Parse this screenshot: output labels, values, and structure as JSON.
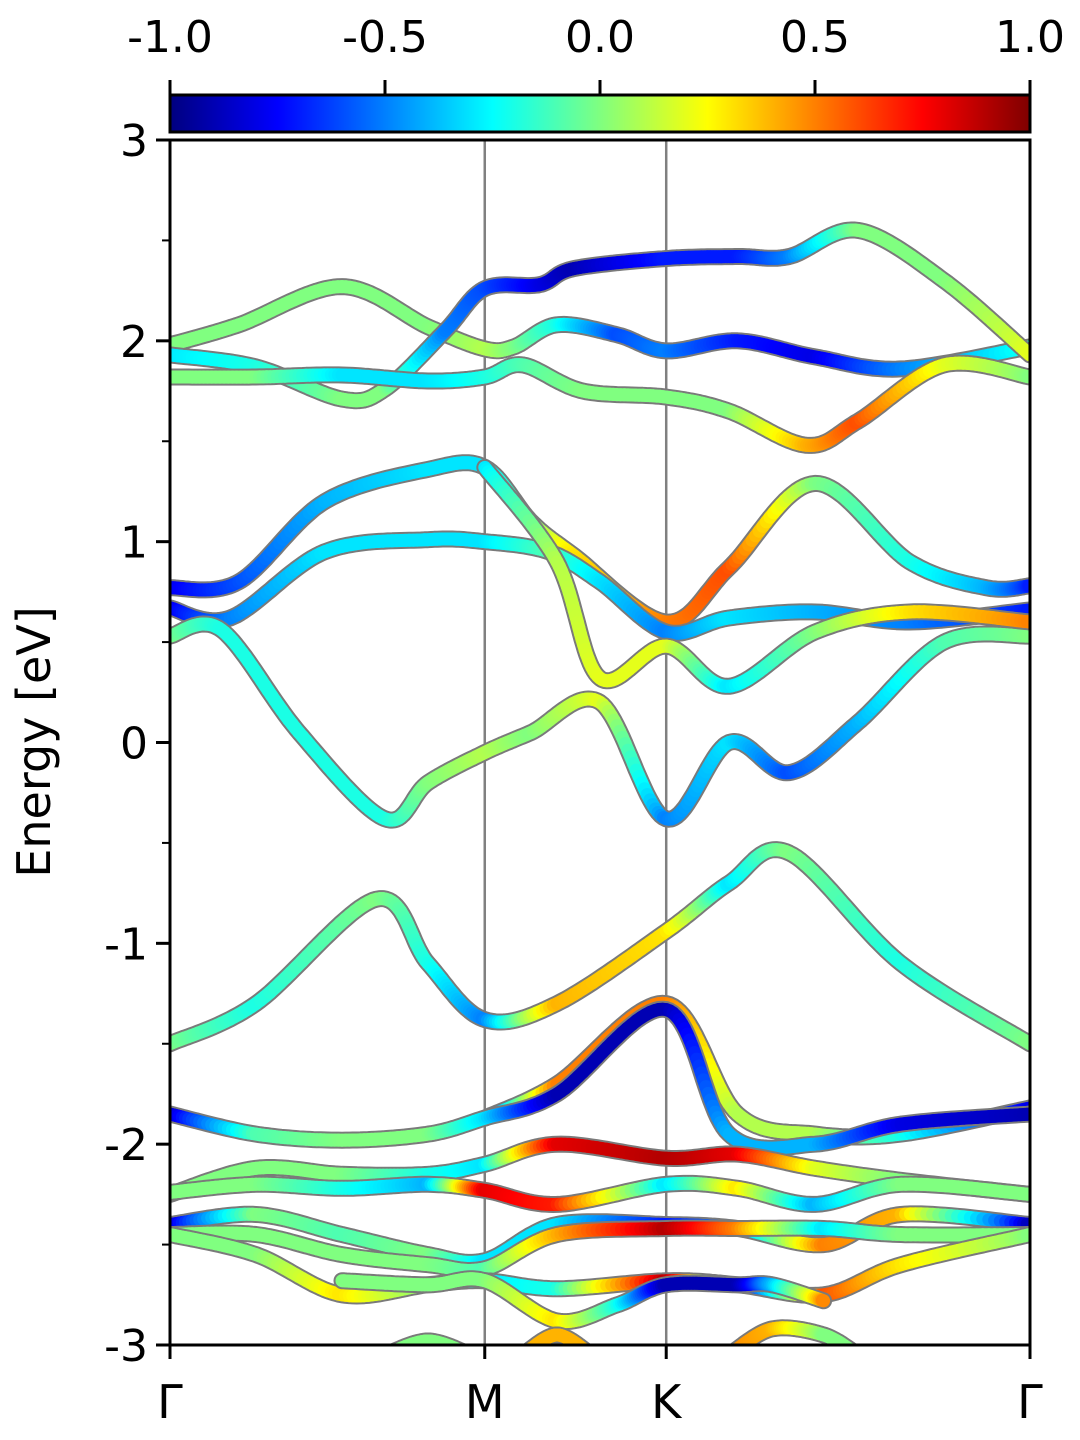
{
  "chart_data": {
    "type": "line",
    "ylabel": "Energy [eV]",
    "ylim": [
      -3,
      3
    ],
    "y_ticks": [
      "-3",
      "-2",
      "-1",
      "0",
      "1",
      "2",
      "3"
    ],
    "y_tick_values": [
      -3,
      -2,
      -1,
      0,
      1,
      2,
      3
    ],
    "k_points": [
      {
        "label": "Γ",
        "x": 0
      },
      {
        "label": "M",
        "x": 0.366
      },
      {
        "label": "K",
        "x": 0.577
      },
      {
        "label": "Γ",
        "x": 1.0
      }
    ],
    "colorbar": {
      "min": -1.0,
      "max": 1.0,
      "ticks": [
        "-1.0",
        "-0.5",
        "0.0",
        "0.5",
        "1.0"
      ],
      "tick_values": [
        -1.0,
        -0.5,
        0.0,
        0.5,
        1.0
      ],
      "colormap": "jet"
    },
    "grid": false,
    "bands": [
      {
        "points": [
          [
            0,
            1.98
          ],
          [
            0.08,
            2.08
          ],
          [
            0.2,
            2.27
          ],
          [
            0.3,
            2.07
          ],
          [
            0.366,
            1.96
          ],
          [
            0.4,
            1.97
          ],
          [
            0.45,
            2.08
          ],
          [
            0.52,
            2.03
          ],
          [
            0.577,
            1.95
          ],
          [
            0.66,
            2.0
          ],
          [
            0.75,
            1.92
          ],
          [
            0.85,
            1.86
          ],
          [
            1.0,
            1.97
          ]
        ],
        "weights": [
          0,
          0,
          0,
          0,
          0.1,
          0,
          -0.2,
          -0.6,
          -0.5,
          -0.7,
          -0.8,
          -0.5,
          -0.2
        ]
      },
      {
        "points": [
          [
            0,
            1.93
          ],
          [
            0.1,
            1.87
          ],
          [
            0.2,
            1.71
          ],
          [
            0.25,
            1.76
          ],
          [
            0.32,
            2.05
          ],
          [
            0.366,
            2.26
          ],
          [
            0.43,
            2.28
          ],
          [
            0.47,
            2.36
          ],
          [
            0.577,
            2.41
          ],
          [
            0.66,
            2.42
          ],
          [
            0.72,
            2.42
          ],
          [
            0.8,
            2.55
          ],
          [
            0.9,
            2.3
          ],
          [
            1.0,
            1.93
          ]
        ],
        "weights": [
          -0.3,
          -0.2,
          0,
          0,
          -0.5,
          -0.6,
          -0.8,
          -0.9,
          -0.7,
          -0.7,
          -0.5,
          0,
          0,
          0.2
        ]
      },
      {
        "points": [
          [
            0,
            1.82
          ],
          [
            0.1,
            1.82
          ],
          [
            0.2,
            1.83
          ],
          [
            0.3,
            1.8
          ],
          [
            0.366,
            1.82
          ],
          [
            0.41,
            1.88
          ],
          [
            0.48,
            1.75
          ],
          [
            0.577,
            1.72
          ],
          [
            0.65,
            1.65
          ],
          [
            0.74,
            1.48
          ],
          [
            0.8,
            1.6
          ],
          [
            0.9,
            1.88
          ],
          [
            1.0,
            1.82
          ]
        ],
        "weights": [
          0,
          0,
          -0.3,
          -0.3,
          -0.2,
          -0.1,
          0,
          0,
          0,
          0.4,
          0.6,
          0.2,
          0
        ]
      },
      {
        "points": [
          [
            0,
            0.77
          ],
          [
            0.08,
            0.8
          ],
          [
            0.18,
            1.2
          ],
          [
            0.3,
            1.36
          ],
          [
            0.366,
            1.37
          ],
          [
            0.42,
            1.1
          ],
          [
            0.47,
            0.93
          ],
          [
            0.577,
            0.6
          ],
          [
            0.65,
            0.87
          ],
          [
            0.75,
            1.29
          ],
          [
            0.86,
            0.9
          ],
          [
            0.95,
            0.77
          ],
          [
            1.0,
            0.78
          ]
        ],
        "weights": [
          -0.8,
          -0.6,
          -0.4,
          -0.3,
          -0.3,
          0,
          0.3,
          0.5,
          0.6,
          0,
          -0.2,
          -0.4,
          -0.7
        ]
      },
      {
        "points": [
          [
            0,
            0.67
          ],
          [
            0.07,
            0.62
          ],
          [
            0.18,
            0.95
          ],
          [
            0.3,
            1.01
          ],
          [
            0.366,
            1.0
          ],
          [
            0.44,
            0.95
          ],
          [
            0.5,
            0.8
          ],
          [
            0.577,
            0.55
          ],
          [
            0.65,
            0.62
          ],
          [
            0.75,
            0.65
          ],
          [
            0.86,
            0.6
          ],
          [
            1.0,
            0.66
          ]
        ],
        "weights": [
          -0.8,
          -0.5,
          -0.3,
          -0.3,
          -0.3,
          -0.1,
          -0.3,
          -0.5,
          -0.3,
          -0.4,
          -0.5,
          -0.7
        ]
      },
      {
        "points": [
          [
            0,
            0.53
          ],
          [
            0.06,
            0.56
          ],
          [
            0.15,
            0.05
          ],
          [
            0.25,
            -0.38
          ],
          [
            0.3,
            -0.2
          ],
          [
            0.366,
            -0.05
          ],
          [
            0.42,
            0.05
          ],
          [
            0.5,
            0.2
          ],
          [
            0.577,
            -0.38
          ],
          [
            0.65,
            0.0
          ],
          [
            0.72,
            -0.15
          ],
          [
            0.8,
            0.1
          ],
          [
            0.9,
            0.5
          ],
          [
            1.0,
            0.53
          ]
        ],
        "weights": [
          0,
          -0.2,
          -0.2,
          -0.2,
          0,
          0.1,
          0,
          0.2,
          -0.5,
          -0.3,
          -0.6,
          -0.4,
          -0.1,
          0
        ]
      },
      {
        "points": [
          [
            0.366,
            1.37
          ],
          [
            0.45,
            0.9
          ],
          [
            0.5,
            0.32
          ],
          [
            0.577,
            0.48
          ],
          [
            0.65,
            0.28
          ],
          [
            0.75,
            0.55
          ],
          [
            0.86,
            0.65
          ],
          [
            1.0,
            0.6
          ]
        ],
        "weights": [
          -0.3,
          0.1,
          0.2,
          0.2,
          -0.3,
          0,
          0.3,
          0.5
        ]
      },
      {
        "points": [
          [
            0,
            -1.5
          ],
          [
            0.1,
            -1.3
          ],
          [
            0.24,
            -0.78
          ],
          [
            0.3,
            -1.1
          ],
          [
            0.366,
            -1.38
          ],
          [
            0.45,
            -1.3
          ],
          [
            0.577,
            -0.94
          ],
          [
            0.65,
            -0.7
          ],
          [
            0.72,
            -0.55
          ],
          [
            0.85,
            -1.1
          ],
          [
            1.0,
            -1.5
          ]
        ],
        "weights": [
          0,
          -0.2,
          0,
          -0.2,
          -0.5,
          0.4,
          0.3,
          -0.3,
          0,
          -0.2,
          0
        ]
      },
      {
        "points": [
          [
            0.366,
            -1.87
          ],
          [
            0.45,
            -1.7
          ],
          [
            0.577,
            -1.3
          ],
          [
            0.66,
            -1.85
          ],
          [
            0.75,
            -1.95
          ],
          [
            0.85,
            -1.95
          ],
          [
            1.0,
            -1.82
          ]
        ],
        "weights": [
          -0.8,
          0.5,
          0.5,
          0.1,
          0.1,
          -0.2,
          -0.8
        ]
      },
      {
        "points": [
          [
            0,
            -1.85
          ],
          [
            0.1,
            -1.95
          ],
          [
            0.2,
            -1.98
          ],
          [
            0.3,
            -1.95
          ],
          [
            0.366,
            -1.87
          ],
          [
            0.45,
            -1.75
          ],
          [
            0.577,
            -1.33
          ],
          [
            0.65,
            -1.95
          ],
          [
            0.75,
            -2.0
          ],
          [
            0.85,
            -1.9
          ],
          [
            1.0,
            -1.85
          ]
        ],
        "weights": [
          -0.9,
          -0.1,
          0,
          0,
          -0.3,
          -0.9,
          -0.9,
          -0.4,
          -0.4,
          -0.8,
          -0.9
        ]
      },
      {
        "points": [
          [
            0,
            -2.25
          ],
          [
            0.1,
            -2.12
          ],
          [
            0.2,
            -2.15
          ],
          [
            0.3,
            -2.15
          ],
          [
            0.366,
            -2.1
          ],
          [
            0.45,
            -2.0
          ],
          [
            0.577,
            -2.07
          ],
          [
            0.66,
            -2.05
          ],
          [
            0.75,
            -2.12
          ],
          [
            0.85,
            -2.18
          ],
          [
            1.0,
            -2.25
          ]
        ],
        "weights": [
          0,
          0,
          0,
          -0.2,
          -0.3,
          0.8,
          0.9,
          0.8,
          0.2,
          0,
          0
        ]
      },
      {
        "points": [
          [
            0,
            -2.24
          ],
          [
            0.1,
            -2.2
          ],
          [
            0.2,
            -2.22
          ],
          [
            0.3,
            -2.2
          ],
          [
            0.366,
            -2.23
          ],
          [
            0.45,
            -2.3
          ],
          [
            0.577,
            -2.2
          ],
          [
            0.66,
            -2.22
          ],
          [
            0.75,
            -2.3
          ],
          [
            0.85,
            -2.2
          ],
          [
            1.0,
            -2.25
          ]
        ],
        "weights": [
          0,
          0,
          -0.2,
          -0.4,
          0.8,
          0.7,
          -0.3,
          0.3,
          -0.4,
          0,
          0
        ]
      },
      {
        "points": [
          [
            0,
            -2.4
          ],
          [
            0.1,
            -2.35
          ],
          [
            0.2,
            -2.45
          ],
          [
            0.3,
            -2.55
          ],
          [
            0.366,
            -2.58
          ],
          [
            0.45,
            -2.4
          ],
          [
            0.577,
            -2.4
          ],
          [
            0.66,
            -2.42
          ],
          [
            0.76,
            -2.5
          ],
          [
            0.85,
            -2.35
          ],
          [
            1.0,
            -2.4
          ]
        ],
        "weights": [
          -0.9,
          0,
          -0.1,
          0,
          -0.3,
          -0.3,
          -0.7,
          -0.5,
          0.5,
          0.4,
          -0.9
        ]
      },
      {
        "points": [
          [
            0,
            -2.45
          ],
          [
            0.1,
            -2.45
          ],
          [
            0.2,
            -2.55
          ],
          [
            0.3,
            -2.6
          ],
          [
            0.366,
            -2.62
          ],
          [
            0.45,
            -2.45
          ],
          [
            0.577,
            -2.42
          ],
          [
            0.66,
            -2.42
          ],
          [
            0.76,
            -2.42
          ],
          [
            0.85,
            -2.45
          ],
          [
            1.0,
            -2.45
          ]
        ],
        "weights": [
          0,
          0,
          0,
          0,
          -0.1,
          0.4,
          0.9,
          0.5,
          -0.3,
          0,
          0
        ]
      },
      {
        "points": [
          [
            0,
            -2.45
          ],
          [
            0.1,
            -2.55
          ],
          [
            0.2,
            -2.75
          ],
          [
            0.3,
            -2.7
          ],
          [
            0.366,
            -2.68
          ],
          [
            0.45,
            -2.72
          ],
          [
            0.577,
            -2.68
          ],
          [
            0.66,
            -2.7
          ],
          [
            0.76,
            -2.75
          ],
          [
            0.85,
            -2.6
          ],
          [
            1.0,
            -2.45
          ]
        ],
        "weights": [
          0,
          0,
          0.3,
          0,
          -0.3,
          -0.2,
          0.9,
          -0.9,
          0.6,
          0.3,
          0
        ]
      },
      {
        "points": [
          [
            0.2,
            -2.68
          ],
          [
            0.3,
            -2.7
          ],
          [
            0.366,
            -2.68
          ],
          [
            0.45,
            -2.88
          ],
          [
            0.52,
            -2.8
          ],
          [
            0.577,
            -2.7
          ],
          [
            0.66,
            -2.7
          ],
          [
            0.7,
            -2.7
          ],
          [
            0.76,
            -2.78
          ]
        ],
        "weights": [
          0,
          0,
          0,
          0.3,
          -0.2,
          -0.9,
          -0.9,
          -0.4,
          0.5
        ]
      },
      {
        "points": [
          [
            0.25,
            -3.05
          ],
          [
            0.3,
            -2.98
          ],
          [
            0.35,
            -3.05
          ]
        ],
        "weights": [
          0,
          0,
          0
        ]
      },
      {
        "points": [
          [
            0.41,
            -3.05
          ],
          [
            0.45,
            -2.95
          ],
          [
            0.49,
            -3.05
          ]
        ],
        "weights": [
          0.4,
          0.4,
          0.4
        ]
      },
      {
        "points": [
          [
            0.65,
            -3.05
          ],
          [
            0.7,
            -2.92
          ],
          [
            0.76,
            -2.95
          ],
          [
            0.8,
            -3.05
          ]
        ],
        "weights": [
          0.5,
          0.4,
          0,
          0
        ]
      }
    ]
  }
}
